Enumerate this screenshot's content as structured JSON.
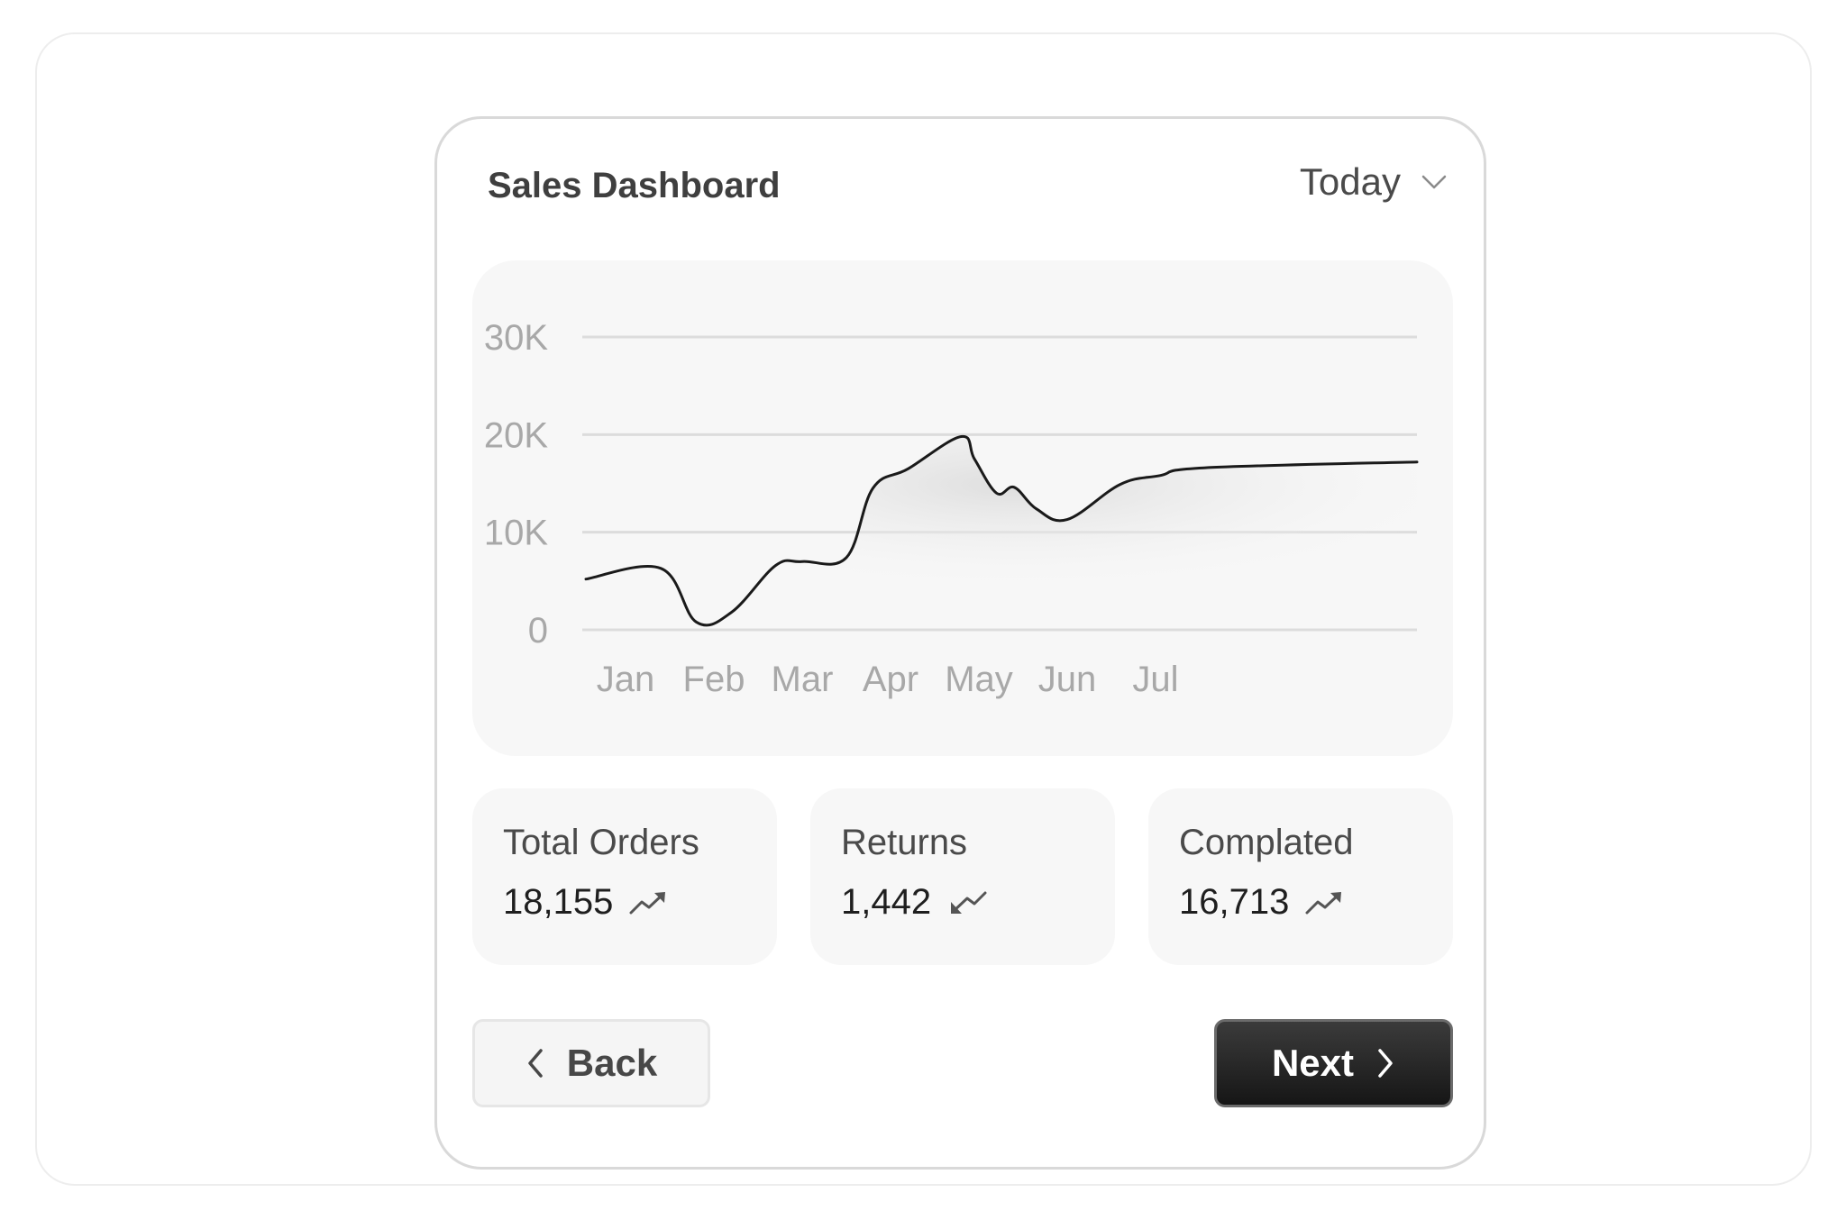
{
  "header": {
    "title": "Sales Dashboard",
    "period": "Today",
    "period_icon": "chevron-down-icon"
  },
  "chart_data": {
    "type": "area",
    "title": "",
    "xlabel": "",
    "ylabel": "",
    "categories": [
      "Jan",
      "Feb",
      "Mar",
      "Apr",
      "May",
      "Jun",
      "Jul"
    ],
    "y_tick_labels": [
      "30K",
      "20K",
      "10K",
      "0"
    ],
    "y_ticks": [
      30000,
      20000,
      10000,
      0
    ],
    "ylim": [
      0,
      30000
    ],
    "grid": true,
    "legend": "none",
    "series": [
      {
        "x": [
          0.1,
          0.4,
          0.8,
          1.2,
          1.7,
          2.0,
          2.5,
          2.8,
          3.2,
          3.8,
          3.95,
          4.2,
          4.4,
          4.65,
          5.0,
          5.6,
          6.05,
          6.55,
          6.85
        ],
        "y": [
          5200,
          6300,
          800,
          1800,
          6600,
          7000,
          7400,
          14500,
          16500,
          19800,
          17500,
          14000,
          14600,
          12400,
          11300,
          14900,
          15800,
          16600,
          17200
        ]
      }
    ],
    "line_color": "#1a1a1a",
    "fill_color": "#e2e2e2"
  },
  "stats": [
    {
      "label": "Total Orders",
      "value": "18,155",
      "trend": "up",
      "icon": "trend-up-icon"
    },
    {
      "label": "Returns",
      "value": "1,442",
      "trend": "down",
      "icon": "trend-down-icon"
    },
    {
      "label": "Complated",
      "value": "16,713",
      "trend": "up",
      "icon": "trend-up-icon"
    }
  ],
  "footer": {
    "back_label": "Back",
    "next_label": "Next"
  }
}
